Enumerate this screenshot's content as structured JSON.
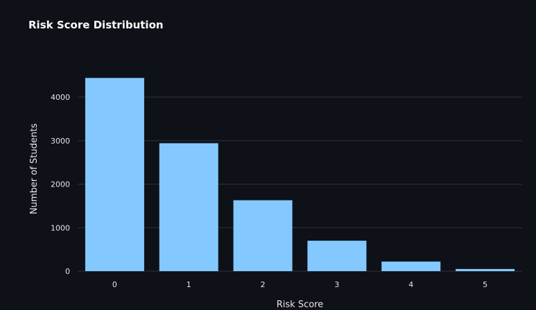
{
  "chart_data": {
    "type": "bar",
    "title": "Risk Score Distribution",
    "xlabel": "Risk Score",
    "ylabel": "Number of Students",
    "categories": [
      "0",
      "1",
      "2",
      "3",
      "4",
      "5"
    ],
    "values": [
      4440,
      2940,
      1630,
      700,
      220,
      50
    ],
    "ylim": [
      0,
      4700
    ],
    "yticks": [
      0,
      1000,
      2000,
      3000,
      4000
    ],
    "grid": true,
    "colors": {
      "bar": "#83c9ff",
      "grid": "#31333f",
      "background": "#0e1117",
      "text": "#e6e6e6",
      "title": "#fafafa"
    }
  }
}
